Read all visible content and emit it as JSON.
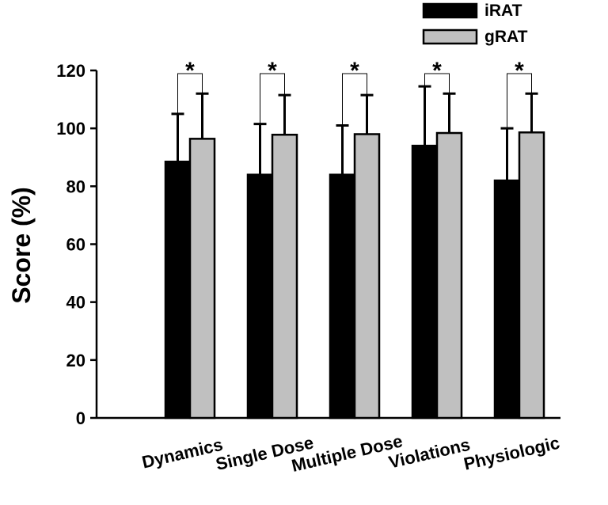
{
  "chart_data": {
    "type": "bar",
    "y_label": "Score (%)",
    "categories": [
      "Dynamics",
      "Single Dose",
      "Multiple Dose",
      "Violations",
      "Physiologic"
    ],
    "series": [
      {
        "name": "iRAT",
        "color": "#000000",
        "values": [
          88.5,
          84,
          84,
          94,
          82
        ],
        "errors": [
          16.5,
          17.5,
          17,
          20.5,
          18
        ]
      },
      {
        "name": "gRAT",
        "color": "#c0c0c0",
        "values": [
          96.4,
          97.8,
          98,
          98.4,
          98.6
        ],
        "errors": [
          15.6,
          13.7,
          13.5,
          13.6,
          13.4
        ]
      }
    ],
    "significance": [
      "*",
      "*",
      "*",
      "*",
      "*"
    ],
    "ylim": [
      0,
      120
    ],
    "yticks": [
      0,
      20,
      40,
      60,
      80,
      100,
      120
    ]
  }
}
